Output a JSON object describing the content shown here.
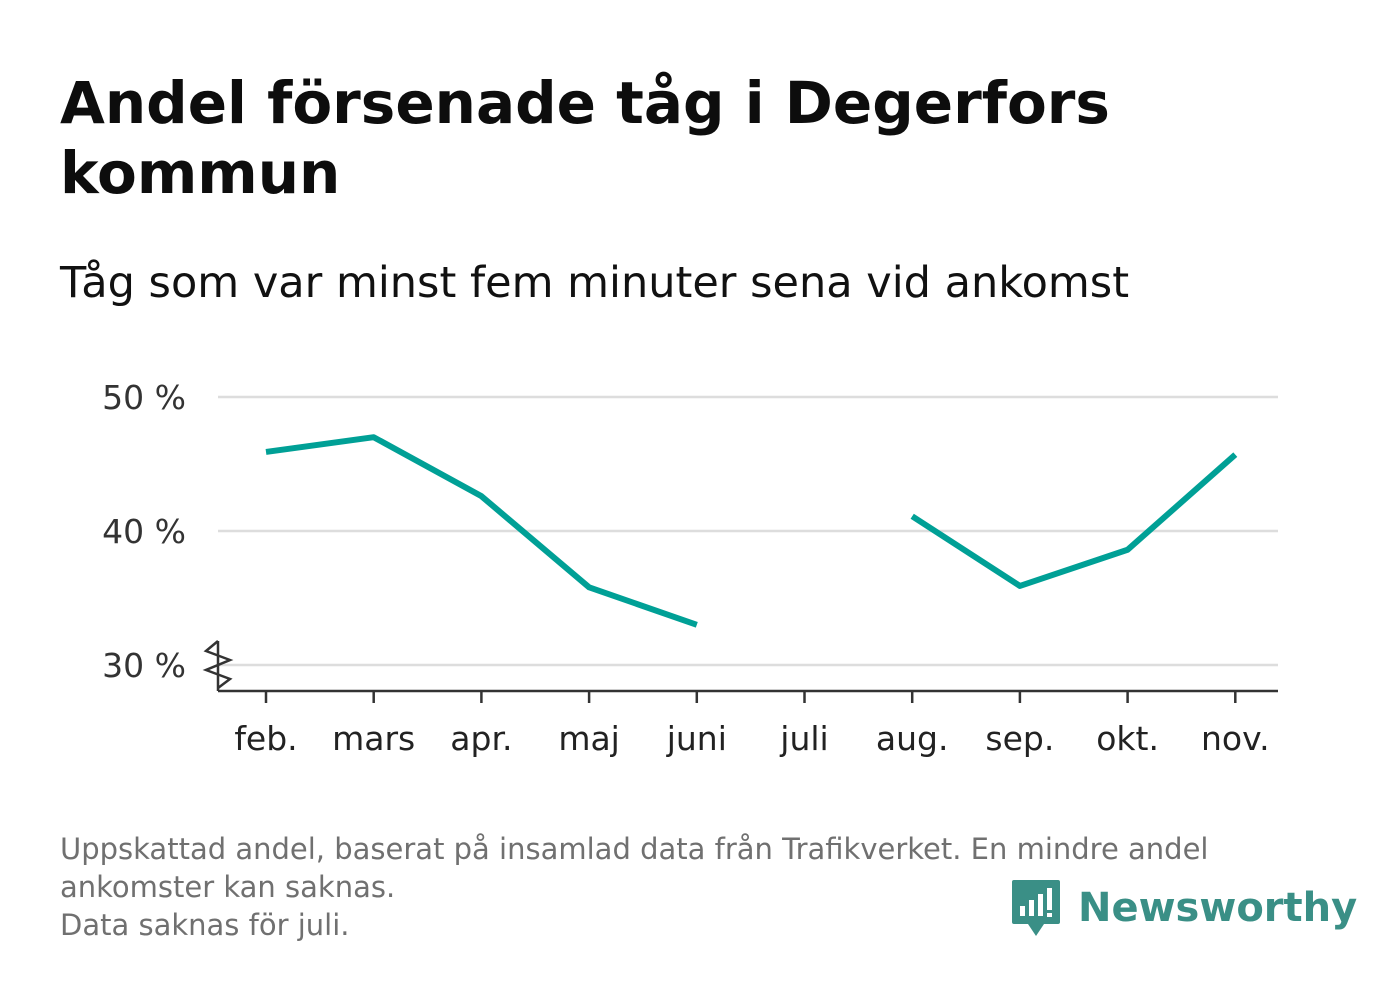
{
  "title": "Andel försenade tåg i Degerfors kommun",
  "subtitle": "Tåg som var minst fem minuter sena vid ankomst",
  "footnote": {
    "line1": "Uppskattad andel, baserat på insamlad data från Trafikverket. En mindre andel ankomster kan saknas.",
    "line2": "Data saknas för juli."
  },
  "brand": {
    "name": "Newsworthy",
    "color": "#3a8f86",
    "icon": "newsworthy-logo-icon"
  },
  "colors": {
    "line": "#00a096",
    "grid": "#dddddd",
    "axis": "#333333"
  },
  "chart_data": {
    "type": "line",
    "title": "Andel försenade tåg i Degerfors kommun",
    "categories": [
      "feb.",
      "mars",
      "apr.",
      "maj",
      "juni",
      "juli",
      "aug.",
      "sep.",
      "okt.",
      "nov."
    ],
    "series": [
      {
        "values": [
          45.9,
          47.0,
          42.6,
          35.8,
          33.0,
          null,
          41.1,
          35.9,
          38.6,
          45.7
        ]
      }
    ],
    "yticks": [
      30,
      40,
      50
    ],
    "ytick_labels": [
      "30 %",
      "40 %",
      "50 %"
    ],
    "ylim": [
      28,
      50
    ],
    "axis_break": true,
    "grid": true,
    "xlabel": "",
    "ylabel": ""
  }
}
